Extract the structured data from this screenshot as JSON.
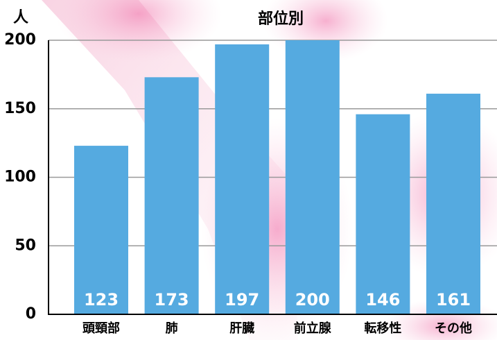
{
  "chart_data": {
    "type": "bar",
    "title": "部位別",
    "y_label": "人",
    "categories": [
      "頭頸部",
      "肺",
      "肝臓",
      "前立腺",
      "転移性",
      "その他"
    ],
    "values": [
      123,
      173,
      197,
      200,
      146,
      161
    ],
    "color": "#55aae0",
    "ylim": [
      0,
      200
    ],
    "yticks": [
      0,
      50,
      100,
      150,
      200
    ],
    "grid": true
  }
}
